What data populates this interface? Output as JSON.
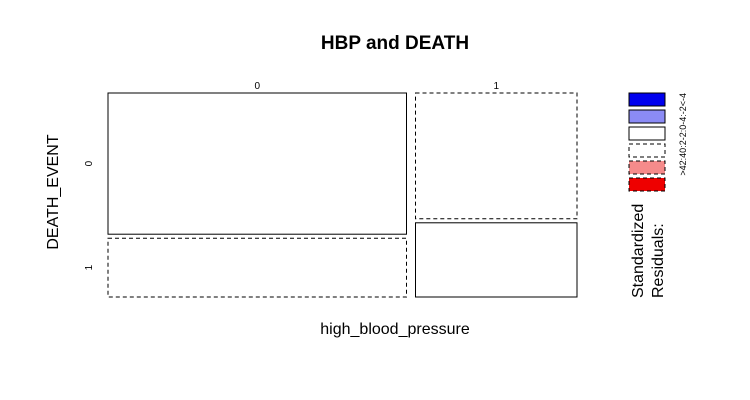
{
  "chart_data": {
    "type": "mosaic",
    "title": "HBP and DEATH",
    "xlabel": "high_blood_pressure",
    "ylabel": "DEATH_EVENT",
    "x_categories": [
      "0",
      "1"
    ],
    "y_categories": [
      "0",
      "1"
    ],
    "column_proportions": [
      0.649,
      0.351
    ],
    "cells": [
      {
        "x": "0",
        "y": "0",
        "proportion_within_column": 0.706,
        "residual_sign": "positive"
      },
      {
        "x": "0",
        "y": "1",
        "proportion_within_column": 0.294,
        "residual_sign": "negative"
      },
      {
        "x": "1",
        "y": "0",
        "proportion_within_column": 0.629,
        "residual_sign": "negative"
      },
      {
        "x": "1",
        "y": "1",
        "proportion_within_column": 0.371,
        "residual_sign": "positive"
      }
    ],
    "legend": {
      "title_line1": "Standardized",
      "title_line2": "Residuals:",
      "entries": [
        {
          "label": ">4",
          "fill": "#0000ee",
          "border": "solid"
        },
        {
          "label": "2:4",
          "fill": "#8b8bf5",
          "border": "solid"
        },
        {
          "label": "0:2",
          "fill": "#ffffff",
          "border": "solid"
        },
        {
          "label": "-2:0",
          "fill": "#ffffff",
          "border": "dashed"
        },
        {
          "label": "-4:-2",
          "fill": "#f58b8b",
          "border": "dashed"
        },
        {
          "label": "<-4",
          "fill": "#ee0000",
          "border": "dashed"
        }
      ]
    }
  }
}
